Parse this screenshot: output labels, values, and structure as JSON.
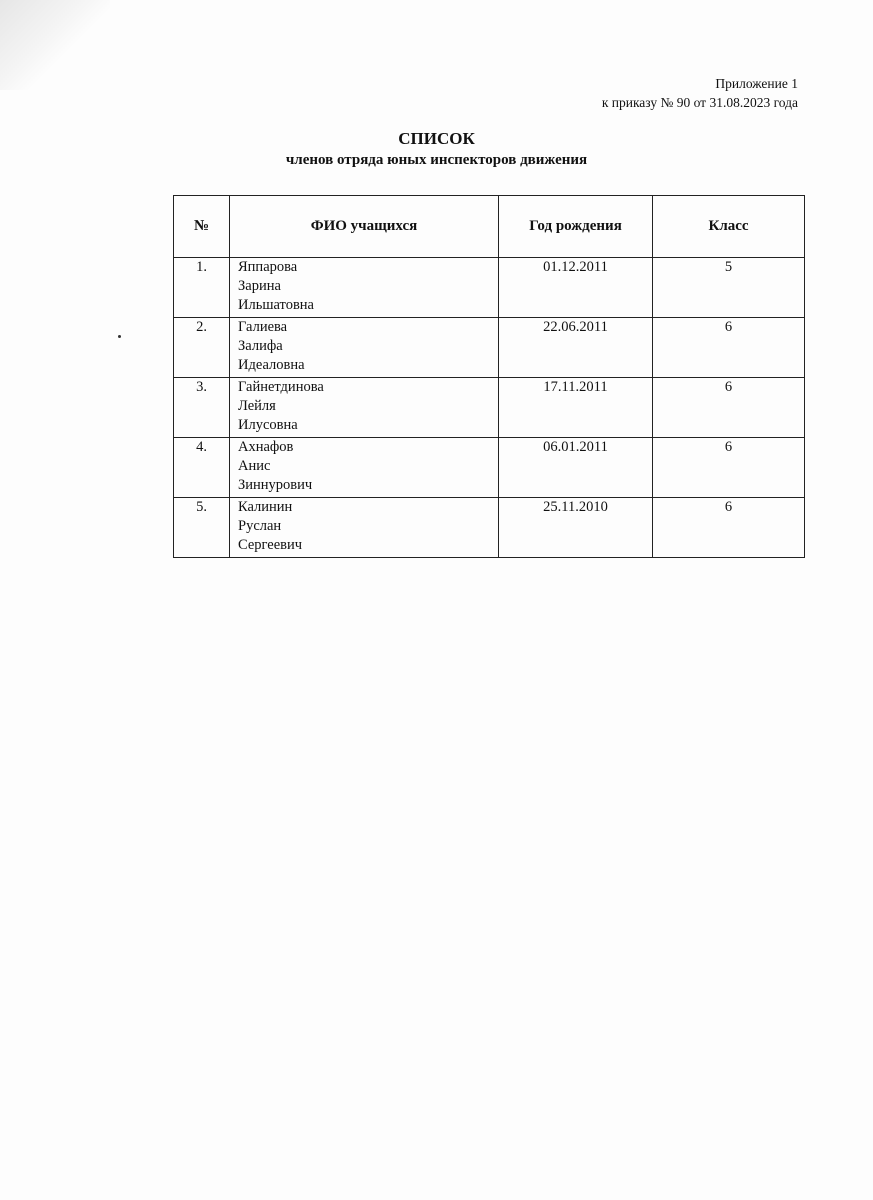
{
  "annex": {
    "line1": "Приложение 1",
    "line2": "к приказу № 90 от 31.08.2023 года"
  },
  "title": {
    "main": "СПИСОК",
    "sub": "членов отряда юных инспекторов движения"
  },
  "table": {
    "headers": [
      "№",
      "ФИО учащихся",
      "Год рождения",
      "Класс"
    ],
    "rows": [
      {
        "num": "1.",
        "name": [
          "Яппарова",
          "Зарина",
          "Ильшатовна"
        ],
        "birth": "01.12.2011",
        "grade": "5"
      },
      {
        "num": "2.",
        "name": [
          "Галиева",
          "Залифа",
          "Идеаловна"
        ],
        "birth": "22.06.2011",
        "grade": "6"
      },
      {
        "num": "3.",
        "name": [
          "Гайнетдинова",
          "Лейля",
          "Илусовна"
        ],
        "birth": "17.11.2011",
        "grade": "6"
      },
      {
        "num": "4.",
        "name": [
          "Ахнафов",
          "Анис",
          "Зиннурович"
        ],
        "birth": "06.01.2011",
        "grade": "6"
      },
      {
        "num": "5.",
        "name": [
          "Калинин",
          "Руслан",
          "Сергеевич"
        ],
        "birth": "25.11.2010",
        "grade": "6"
      }
    ]
  }
}
